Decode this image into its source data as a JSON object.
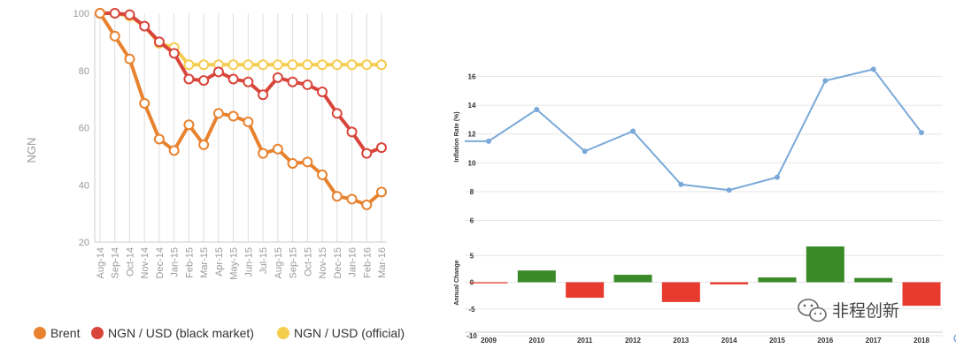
{
  "chart_data": [
    {
      "type": "line",
      "title": "",
      "ylabel": "NGN",
      "xlabel": "",
      "ylim": [
        20,
        100
      ],
      "yticks": [
        "100",
        "80",
        "60",
        "40",
        "20"
      ],
      "categories": [
        "Aug-14",
        "Sep-14",
        "Oct-14",
        "Nov-14",
        "Dec-14",
        "Jan-15",
        "Feb-15",
        "Mar-15",
        "Apr-15",
        "May-15",
        "Jun-15",
        "Jul-15",
        "Aug-15",
        "Sep-15",
        "Oct-15",
        "Nov-15",
        "Dec-15",
        "Jan-16",
        "Feb-16",
        "Mar-16"
      ],
      "series": [
        {
          "name": "Brent",
          "color": "#e8822e",
          "values": [
            100,
            92,
            84,
            68.5,
            56,
            52,
            61,
            54,
            65,
            64,
            62,
            51,
            52.5,
            47.5,
            48,
            43.5,
            36,
            35,
            33,
            37.5
          ]
        },
        {
          "name": "NGN / USD (black market)",
          "color": "#d9453b",
          "values": [
            100,
            100,
            99.5,
            95.5,
            90,
            86,
            77,
            76.5,
            79.5,
            77,
            76,
            71.5,
            77.5,
            76,
            75,
            72.5,
            65,
            58.5,
            51,
            53
          ]
        },
        {
          "name": "NGN / USD (official)",
          "color": "#f5cd4e",
          "values": [
            100,
            100,
            99,
            95.5,
            89.5,
            88,
            82,
            82,
            82,
            82,
            82,
            82,
            82,
            82,
            82,
            82,
            82,
            82,
            82,
            82
          ]
        }
      ],
      "legend_position": "bottom"
    },
    {
      "type": "line",
      "title": "",
      "ylabel": "Inflation Rate (%)",
      "xlabel": "",
      "ylim": [
        4,
        17.5
      ],
      "yticks": [
        "16",
        "14",
        "12",
        "10",
        "8",
        "6"
      ],
      "categories": [
        "2009",
        "2010",
        "2011",
        "2012",
        "2013",
        "2014",
        "2015",
        "2016",
        "2017",
        "2018"
      ],
      "series": [
        {
          "name": "Inflation Rate",
          "color": "#7aa9d9",
          "values": [
            11.5,
            13.7,
            10.8,
            12.2,
            8.5,
            8.1,
            9.0,
            15.7,
            16.5,
            12.1
          ]
        }
      ],
      "legend_position": "none"
    },
    {
      "type": "bar",
      "title": "",
      "ylabel": "Annual Change",
      "xlabel": "",
      "ylim": [
        -10,
        7
      ],
      "yticks": [
        "5",
        "0",
        "-5",
        "-10"
      ],
      "categories": [
        "2009",
        "2010",
        "2011",
        "2012",
        "2013",
        "2014",
        "2015",
        "2016",
        "2017",
        "2018"
      ],
      "values": [
        -0.2,
        2.2,
        -2.9,
        1.4,
        -3.7,
        -0.4,
        0.9,
        6.7,
        0.8,
        -4.4
      ],
      "positive_color": "#3b8a2a",
      "negative_color": "#e63b2e"
    }
  ],
  "watermark": {
    "text": "非程创新"
  }
}
